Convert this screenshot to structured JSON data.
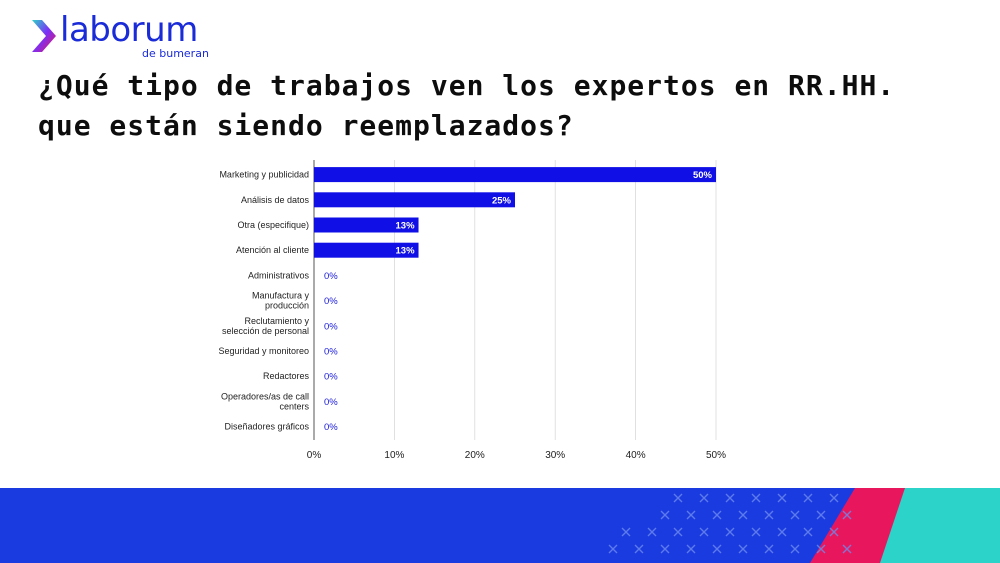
{
  "brand": {
    "name": "laborum",
    "sub": "de bumeran",
    "color": "#1a2bd8"
  },
  "title": "¿Qué tipo de trabajos ven los expertos en RR.HH. que están siendo reemplazados?",
  "chart_data": {
    "type": "bar",
    "orientation": "horizontal",
    "categories": [
      [
        "Marketing y publicidad"
      ],
      [
        "Análisis de datos"
      ],
      [
        "Otra (especifique)"
      ],
      [
        "Atención al cliente"
      ],
      [
        "Administrativos"
      ],
      [
        "Manufactura y",
        "producción"
      ],
      [
        "Reclutamiento y",
        "selección de personal"
      ],
      [
        "Seguridad y monitoreo"
      ],
      [
        "Redactores"
      ],
      [
        "Operadores/as de call",
        "centers"
      ],
      [
        "Diseñadores gráficos"
      ]
    ],
    "values": [
      50,
      25,
      13,
      13,
      0,
      0,
      0,
      0,
      0,
      0,
      0
    ],
    "value_labels": [
      "50%",
      "25%",
      "13%",
      "13%",
      "0%",
      "0%",
      "0%",
      "0%",
      "0%",
      "0%",
      "0%"
    ],
    "xlim": [
      0,
      50
    ],
    "xticks": [
      0,
      10,
      20,
      30,
      40,
      50
    ],
    "xtick_labels": [
      "0%",
      "10%",
      "20%",
      "30%",
      "40%",
      "50%"
    ],
    "grid": true,
    "bar_color": "#1010e6"
  },
  "footer": {
    "primary": "#1a3be0",
    "accent1": "#e8175d",
    "accent2": "#2cd3c8"
  }
}
